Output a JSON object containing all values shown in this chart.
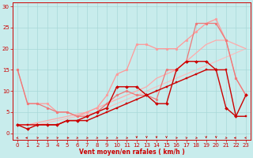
{
  "background_color": "#c8ecec",
  "grid_color": "#a8d8d8",
  "xlabel": "Vent moyen/en rafales ( km/h )",
  "xlim": [
    -0.5,
    23.5
  ],
  "ylim": [
    -1.5,
    31
  ],
  "xticks": [
    0,
    1,
    2,
    3,
    4,
    5,
    6,
    7,
    8,
    9,
    10,
    11,
    12,
    13,
    14,
    15,
    16,
    17,
    18,
    19,
    20,
    21,
    22,
    23
  ],
  "yticks": [
    0,
    5,
    10,
    15,
    20,
    25,
    30
  ],
  "lines": [
    {
      "x": [
        0,
        1,
        2,
        3,
        4,
        5,
        6,
        7,
        8,
        9,
        10,
        11,
        12,
        13,
        14,
        15,
        16,
        17,
        18,
        19,
        20,
        21,
        22,
        23
      ],
      "y": [
        2,
        2,
        2,
        2.5,
        3,
        3.5,
        4,
        4.5,
        5,
        6,
        7,
        8,
        9,
        10,
        11,
        12,
        13,
        14,
        15,
        16,
        17,
        18,
        19,
        20
      ],
      "color": "#ffbbbb",
      "lw": 0.8,
      "marker": null,
      "ms": 0,
      "zorder": 1
    },
    {
      "x": [
        0,
        1,
        2,
        3,
        4,
        5,
        6,
        7,
        8,
        9,
        10,
        11,
        12,
        13,
        14,
        15,
        16,
        17,
        18,
        19,
        20,
        21,
        22,
        23
      ],
      "y": [
        2,
        2,
        2.5,
        3,
        3.5,
        4,
        4.5,
        5,
        6,
        7,
        8,
        9,
        10,
        11,
        13,
        14,
        15,
        17,
        19,
        21,
        22,
        22,
        21,
        20
      ],
      "color": "#ffaaaa",
      "lw": 0.9,
      "marker": null,
      "ms": 0,
      "zorder": 2
    },
    {
      "x": [
        0,
        1,
        2,
        3,
        4,
        5,
        6,
        7,
        8,
        9,
        10,
        11,
        12,
        13,
        14,
        15,
        16,
        17,
        18,
        19,
        20,
        21,
        22,
        23
      ],
      "y": [
        15,
        7,
        7,
        7,
        5,
        5,
        4,
        5,
        6,
        9,
        14,
        15,
        21,
        21,
        20,
        20,
        20,
        22,
        24,
        26,
        27,
        22,
        13,
        9
      ],
      "color": "#ff9999",
      "lw": 0.9,
      "marker": "o",
      "ms": 2.0,
      "zorder": 3
    },
    {
      "x": [
        0,
        1,
        2,
        3,
        4,
        5,
        6,
        7,
        8,
        9,
        10,
        11,
        12,
        13,
        14,
        15,
        16,
        17,
        18,
        19,
        20,
        21,
        22,
        23
      ],
      "y": [
        15,
        7,
        7,
        6,
        5,
        5,
        4,
        4,
        5,
        7,
        9,
        10,
        9,
        9,
        8,
        15,
        15,
        17,
        26,
        26,
        26,
        22,
        13,
        9
      ],
      "color": "#ee7777",
      "lw": 0.9,
      "marker": "o",
      "ms": 2.0,
      "zorder": 4
    },
    {
      "x": [
        0,
        1,
        2,
        3,
        4,
        5,
        6,
        7,
        8,
        9,
        10,
        11,
        12,
        13,
        14,
        15,
        16,
        17,
        18,
        19,
        20,
        21,
        22,
        23
      ],
      "y": [
        2,
        2,
        2,
        2,
        2,
        3,
        3,
        3,
        4,
        5,
        6,
        7,
        8,
        9,
        10,
        11,
        12,
        13,
        14,
        15,
        15,
        15,
        4,
        4
      ],
      "color": "#cc0000",
      "lw": 1.0,
      "marker": "s",
      "ms": 2.0,
      "zorder": 5
    },
    {
      "x": [
        0,
        1,
        2,
        3,
        4,
        5,
        6,
        7,
        8,
        9,
        10,
        11,
        12,
        13,
        14,
        15,
        16,
        17,
        18,
        19,
        20,
        21,
        22,
        23
      ],
      "y": [
        2,
        1,
        2,
        2,
        2,
        3,
        3,
        4,
        5,
        6,
        11,
        11,
        11,
        9,
        7,
        7,
        15,
        17,
        17,
        17,
        15,
        6,
        4,
        9
      ],
      "color": "#cc0000",
      "lw": 1.0,
      "marker": "D",
      "ms": 2.0,
      "zorder": 6
    }
  ],
  "arrows": {
    "x": [
      0,
      1,
      2,
      3,
      4,
      5,
      6,
      7,
      8,
      9,
      10,
      11,
      12,
      13,
      14,
      15,
      16,
      17,
      18,
      19,
      20,
      21,
      22,
      23
    ],
    "angles_deg": [
      225,
      180,
      45,
      45,
      45,
      0,
      315,
      315,
      315,
      315,
      315,
      315,
      270,
      270,
      270,
      270,
      45,
      45,
      315,
      270,
      270,
      315,
      180,
      135
    ]
  },
  "arrow_color": "#cc0000",
  "tick_color": "#cc0000",
  "tick_fontsize": 5,
  "xlabel_fontsize": 5.5,
  "xlabel_color": "#cc0000"
}
